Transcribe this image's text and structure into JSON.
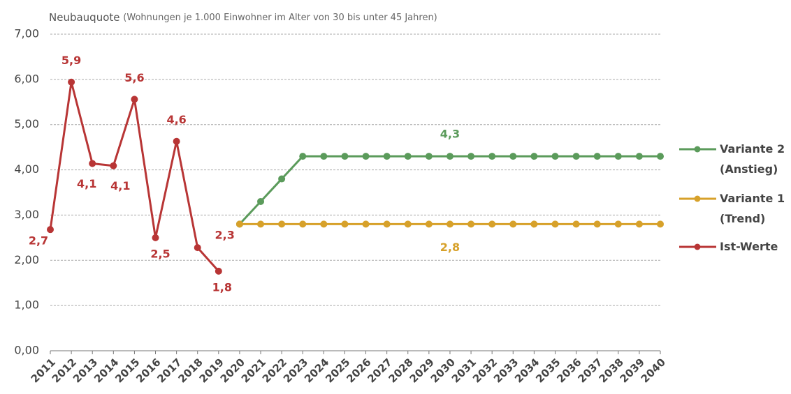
{
  "chart_data": {
    "type": "line",
    "title": "Neubauquote",
    "subtitle": "(Wohnungen je 1.000 Einwohner im Alter von 30 bis unter 45 Jahren)",
    "categories": [
      "2011",
      "2012",
      "2013",
      "2014",
      "2015",
      "2016",
      "2017",
      "2018",
      "2019",
      "2020",
      "2021",
      "2022",
      "2023",
      "2024",
      "2025",
      "2026",
      "2027",
      "2028",
      "2029",
      "2030",
      "2031",
      "2032",
      "2033",
      "2034",
      "2035",
      "2036",
      "2037",
      "2038",
      "2039",
      "2040"
    ],
    "series": [
      {
        "name": "Variante 2 (Anstieg)",
        "color": "#5b9b5b",
        "values": [
          null,
          null,
          null,
          null,
          null,
          null,
          null,
          null,
          null,
          2.8,
          3.3,
          3.8,
          4.3,
          4.3,
          4.3,
          4.3,
          4.3,
          4.3,
          4.3,
          4.3,
          4.3,
          4.3,
          4.3,
          4.3,
          4.3,
          4.3,
          4.3,
          4.3,
          4.3,
          4.3
        ],
        "value_labels": [
          null,
          null,
          null,
          null,
          null,
          null,
          null,
          null,
          null,
          null,
          null,
          null,
          null,
          null,
          null,
          null,
          null,
          null,
          null,
          "4,3",
          null,
          null,
          null,
          null,
          null,
          null,
          null,
          null,
          null,
          null
        ]
      },
      {
        "name": "Variante 1 (Trend)",
        "color": "#d7a12a",
        "values": [
          null,
          null,
          null,
          null,
          null,
          null,
          null,
          null,
          null,
          2.8,
          2.8,
          2.8,
          2.8,
          2.8,
          2.8,
          2.8,
          2.8,
          2.8,
          2.8,
          2.8,
          2.8,
          2.8,
          2.8,
          2.8,
          2.8,
          2.8,
          2.8,
          2.8,
          2.8,
          2.8
        ],
        "value_labels": [
          null,
          null,
          null,
          null,
          null,
          null,
          null,
          null,
          null,
          null,
          null,
          null,
          null,
          null,
          null,
          null,
          null,
          null,
          null,
          "2,8",
          null,
          null,
          null,
          null,
          null,
          null,
          null,
          null,
          null,
          null
        ]
      },
      {
        "name": "Ist-Werte",
        "color": "#b83535",
        "values": [
          2.68,
          5.94,
          4.14,
          4.09,
          5.56,
          2.5,
          4.63,
          2.28,
          1.76,
          null,
          null,
          null,
          null,
          null,
          null,
          null,
          null,
          null,
          null,
          null,
          null,
          null,
          null,
          null,
          null,
          null,
          null,
          null,
          null,
          null
        ],
        "value_labels": [
          "2,7",
          "5,9",
          "4,1",
          "4,1",
          "5,6",
          "2,5",
          "4,6",
          "2,3",
          "1,8",
          null,
          null,
          null,
          null,
          null,
          null,
          null,
          null,
          null,
          null,
          null,
          null,
          null,
          null,
          null,
          null,
          null,
          null,
          null,
          null,
          null
        ]
      }
    ],
    "ylim": [
      0,
      7
    ],
    "yticks": [
      {
        "value": 0,
        "label": "0,00"
      },
      {
        "value": 1,
        "label": "1,00"
      },
      {
        "value": 2,
        "label": "2,00"
      },
      {
        "value": 3,
        "label": "3,00"
      },
      {
        "value": 4,
        "label": "4,00"
      },
      {
        "value": 5,
        "label": "5,00"
      },
      {
        "value": 6,
        "label": "6,00"
      },
      {
        "value": 7,
        "label": "7,00"
      }
    ],
    "grid": true,
    "legend": "right"
  }
}
